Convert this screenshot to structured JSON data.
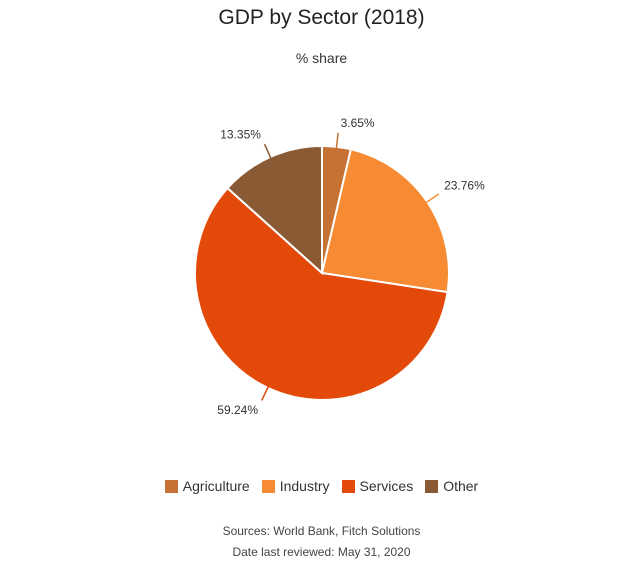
{
  "chart_data": {
    "type": "pie",
    "title": "GDP by Sector (2018)",
    "subtitle": "% share",
    "slices": [
      {
        "name": "Agriculture",
        "value": 3.65,
        "label": "3.65%",
        "color": "#c57234"
      },
      {
        "name": "Industry",
        "value": 23.76,
        "label": "23.76%",
        "color": "#f68b33"
      },
      {
        "name": "Services",
        "value": 59.24,
        "label": "59.24%",
        "color": "#e34a0a"
      },
      {
        "name": "Other",
        "value": 13.35,
        "label": "13.35%",
        "color": "#8a5a34"
      }
    ],
    "legend_position": "bottom"
  },
  "footer": {
    "sources": "Sources: World Bank, Fitch Solutions",
    "reviewed": "Date last reviewed: May 31, 2020"
  }
}
